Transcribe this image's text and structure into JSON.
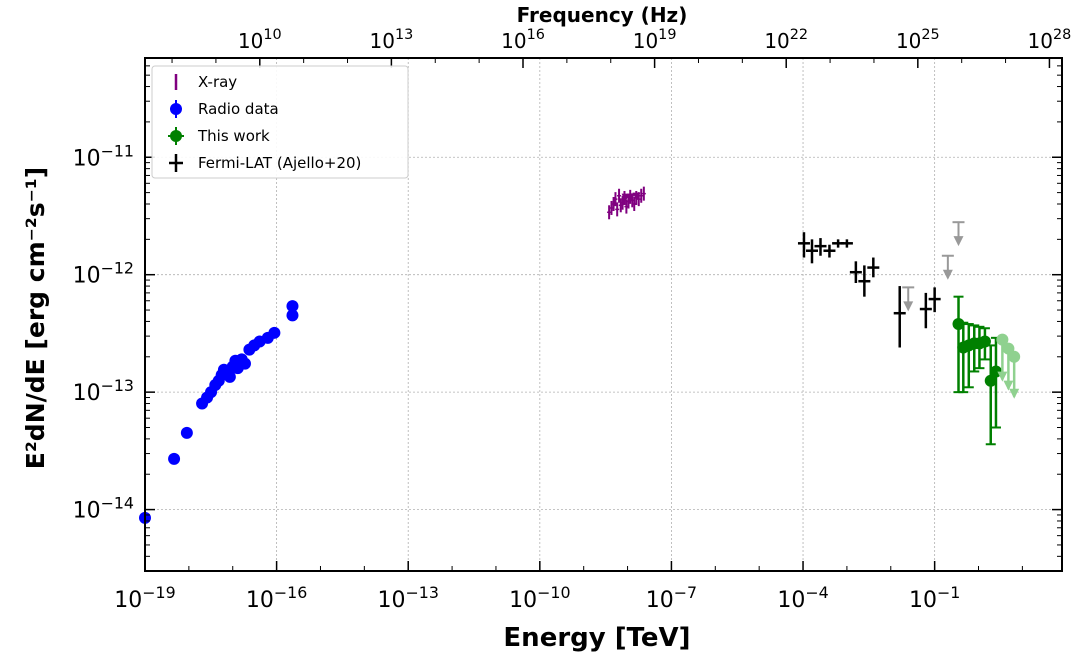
{
  "chart_data": {
    "type": "scatter",
    "xlabel": "Energy [TeV]",
    "x2label": "Frequency (Hz)",
    "ylabel": "E²dN/dE [erg cm⁻²s⁻¹]",
    "x_scale": "log",
    "y_scale": "log",
    "xlim": [
      1e-19,
      80
    ],
    "ylim": [
      3e-15,
      7e-11
    ],
    "x_ticks": [
      {
        "value": 1e-19,
        "base": "10",
        "exp": "−19"
      },
      {
        "value": 1e-16,
        "base": "10",
        "exp": "−16"
      },
      {
        "value": 1e-13,
        "base": "10",
        "exp": "−13"
      },
      {
        "value": 1e-10,
        "base": "10",
        "exp": "−10"
      },
      {
        "value": 1e-07,
        "base": "10",
        "exp": "−7"
      },
      {
        "value": 0.0001,
        "base": "10",
        "exp": "−4"
      },
      {
        "value": 0.1,
        "base": "10",
        "exp": "−1"
      }
    ],
    "x2_ticks": [
      {
        "value": 10000000000.0,
        "base": "10",
        "exp": "10"
      },
      {
        "value": 10000000000000.0,
        "base": "10",
        "exp": "13"
      },
      {
        "value": 1e+16,
        "base": "10",
        "exp": "16"
      },
      {
        "value": 1e+19,
        "base": "10",
        "exp": "19"
      },
      {
        "value": 1e+22,
        "base": "10",
        "exp": "22"
      },
      {
        "value": 1e+25,
        "base": "10",
        "exp": "25"
      },
      {
        "value": 1e+28,
        "base": "10",
        "exp": "28"
      }
    ],
    "y_ticks": [
      {
        "value": 1e-14,
        "base": "10",
        "exp": "−14"
      },
      {
        "value": 1e-13,
        "base": "10",
        "exp": "−13"
      },
      {
        "value": 1e-12,
        "base": "10",
        "exp": "−12"
      },
      {
        "value": 1e-11,
        "base": "10",
        "exp": "−11"
      }
    ],
    "grid": true,
    "legend_position": "top-left",
    "series": [
      {
        "name": "X-ray",
        "color": "#800080",
        "marker": "vline",
        "points": [
          {
            "x": 3.8e-09,
            "y": 3.4e-12
          },
          {
            "x": 4.3e-09,
            "y": 3.7e-12
          },
          {
            "x": 4.8e-09,
            "y": 4e-12
          },
          {
            "x": 5.3e-09,
            "y": 4.4e-12
          },
          {
            "x": 5.8e-09,
            "y": 3.6e-12
          },
          {
            "x": 6.4e-09,
            "y": 4.7e-12
          },
          {
            "x": 7e-09,
            "y": 3.9e-12
          },
          {
            "x": 7.7e-09,
            "y": 4.1e-12
          },
          {
            "x": 8.5e-09,
            "y": 4.5e-12
          },
          {
            "x": 9.4e-09,
            "y": 3.8e-12
          },
          {
            "x": 1.05e-08,
            "y": 4.2e-12
          },
          {
            "x": 1.15e-08,
            "y": 4.6e-12
          },
          {
            "x": 1.28e-08,
            "y": 4.3e-12
          },
          {
            "x": 1.42e-08,
            "y": 4e-12
          },
          {
            "x": 1.58e-08,
            "y": 4.5e-12
          },
          {
            "x": 1.8e-08,
            "y": 4.4e-12
          },
          {
            "x": 2.05e-08,
            "y": 4.7e-12
          },
          {
            "x": 2.35e-08,
            "y": 4.9e-12
          }
        ],
        "upper_limits": [
          {
            "x": 9e-09,
            "y": 4.9e-12
          },
          {
            "x": 1.2e-08,
            "y": 4.9e-12
          },
          {
            "x": 1.6e-08,
            "y": 5e-12
          }
        ]
      },
      {
        "name": "Radio data",
        "color": "#0000ff",
        "marker": "circle",
        "points": [
          {
            "x": 1e-19,
            "y": 8.5e-15
          },
          {
            "x": 4.6e-19,
            "y": 2.7e-14
          },
          {
            "x": 9e-19,
            "y": 4.5e-14
          },
          {
            "x": 2e-18,
            "y": 8e-14
          },
          {
            "x": 2.6e-18,
            "y": 9e-14
          },
          {
            "x": 3.2e-18,
            "y": 1e-13
          },
          {
            "x": 4e-18,
            "y": 1.15e-13
          },
          {
            "x": 4.8e-18,
            "y": 1.25e-13
          },
          {
            "x": 5.6e-18,
            "y": 1.4e-13
          },
          {
            "x": 6.3e-18,
            "y": 1.55e-13
          },
          {
            "x": 7.5e-18,
            "y": 1.5e-13
          },
          {
            "x": 8.6e-18,
            "y": 1.35e-13
          },
          {
            "x": 1e-17,
            "y": 1.65e-13
          },
          {
            "x": 1.15e-17,
            "y": 1.85e-13
          },
          {
            "x": 1.3e-17,
            "y": 1.6e-13
          },
          {
            "x": 1.6e-17,
            "y": 1.9e-13
          },
          {
            "x": 1.9e-17,
            "y": 1.75e-13
          },
          {
            "x": 2.4e-17,
            "y": 2.3e-13
          },
          {
            "x": 3.1e-17,
            "y": 2.5e-13
          },
          {
            "x": 4.1e-17,
            "y": 2.7e-13
          },
          {
            "x": 6.3e-17,
            "y": 2.9e-13
          },
          {
            "x": 8.9e-17,
            "y": 3.2e-13
          },
          {
            "x": 2.3e-16,
            "y": 4.5e-13
          },
          {
            "x": 2.3e-16,
            "y": 5.4e-13
          }
        ]
      },
      {
        "name": "This work",
        "color": "#008000",
        "marker": "circle",
        "points": [
          {
            "x": 0.35,
            "y": 3.8e-13,
            "ylo": 1e-13,
            "yhi": 6.5e-13
          },
          {
            "x": 0.45,
            "y": 2.4e-13,
            "ylo": 1e-13,
            "yhi": 3.9e-13
          },
          {
            "x": 0.6,
            "y": 2.5e-13,
            "ylo": 1.1e-13,
            "yhi": 3.8e-13
          },
          {
            "x": 0.8,
            "y": 2.6e-13,
            "ylo": 1.5e-13,
            "yhi": 3.7e-13
          },
          {
            "x": 1.05,
            "y": 2.6e-13,
            "ylo": 1.6e-13,
            "yhi": 3.6e-13
          },
          {
            "x": 1.4,
            "y": 2.7e-13,
            "ylo": 1.9e-13,
            "yhi": 3.5e-13
          },
          {
            "x": 1.9,
            "y": 1.25e-13,
            "ylo": 3.6e-14,
            "yhi": 2.5e-13
          },
          {
            "x": 2.5,
            "y": 1.5e-13,
            "ylo": 5e-14,
            "yhi": 2.9e-13
          }
        ],
        "upper_limits": [
          {
            "x": 3.5,
            "y": 2.8e-13,
            "light": true
          },
          {
            "x": 4.8,
            "y": 2.35e-13,
            "light": true
          },
          {
            "x": 6.5,
            "y": 2e-13,
            "light": true
          }
        ]
      },
      {
        "name": "Fermi-LAT (Ajello+20)",
        "color": "#000000",
        "marker": "cross",
        "points": [
          {
            "x": 0.000105,
            "y": 1.85e-12,
            "ylo": 1.4e-12,
            "yhi": 2.3e-12
          },
          {
            "x": 0.00016,
            "y": 1.6e-12,
            "ylo": 1.25e-12,
            "yhi": 2e-12
          },
          {
            "x": 0.00025,
            "y": 1.75e-12,
            "ylo": 1.45e-12,
            "yhi": 2.05e-12
          },
          {
            "x": 0.0004,
            "y": 1.6e-12,
            "ylo": 1.4e-12,
            "yhi": 1.8e-12
          },
          {
            "x": 0.00063,
            "y": 1.85e-12,
            "ylo": 1.7e-12,
            "yhi": 2e-12
          },
          {
            "x": 0.001,
            "y": 1.85e-12,
            "ylo": 1.7e-12,
            "yhi": 2e-12
          },
          {
            "x": 0.0016,
            "y": 1.05e-12,
            "ylo": 8.5e-13,
            "yhi": 1.3e-12
          },
          {
            "x": 0.0025,
            "y": 8.8e-13,
            "ylo": 6.5e-13,
            "yhi": 1.2e-12
          },
          {
            "x": 0.004,
            "y": 1.15e-12,
            "ylo": 9.5e-13,
            "yhi": 1.4e-12
          },
          {
            "x": 0.016,
            "y": 4.7e-13,
            "ylo": 2.4e-13,
            "yhi": 8e-13
          },
          {
            "x": 0.063,
            "y": 5.1e-13,
            "ylo": 3.5e-13,
            "yhi": 7e-13
          },
          {
            "x": 0.1,
            "y": 6.2e-13,
            "ylo": 4.8e-13,
            "yhi": 7.8e-13
          }
        ],
        "upper_limits": [
          {
            "x": 0.025,
            "y": 7.8e-13,
            "gray": true
          },
          {
            "x": 0.2,
            "y": 1.45e-12,
            "gray": true
          },
          {
            "x": 0.35,
            "y": 2.8e-12,
            "gray": true
          }
        ]
      }
    ],
    "legend": [
      {
        "label": "X-ray",
        "marker": "vline",
        "color": "#800080"
      },
      {
        "label": "Radio data",
        "marker": "circle",
        "color": "#0000ff"
      },
      {
        "label": "This work",
        "marker": "circle",
        "color": "#008000"
      },
      {
        "label": "Fermi-LAT (Ajello+20)",
        "marker": "cross",
        "color": "#000000"
      }
    ]
  }
}
